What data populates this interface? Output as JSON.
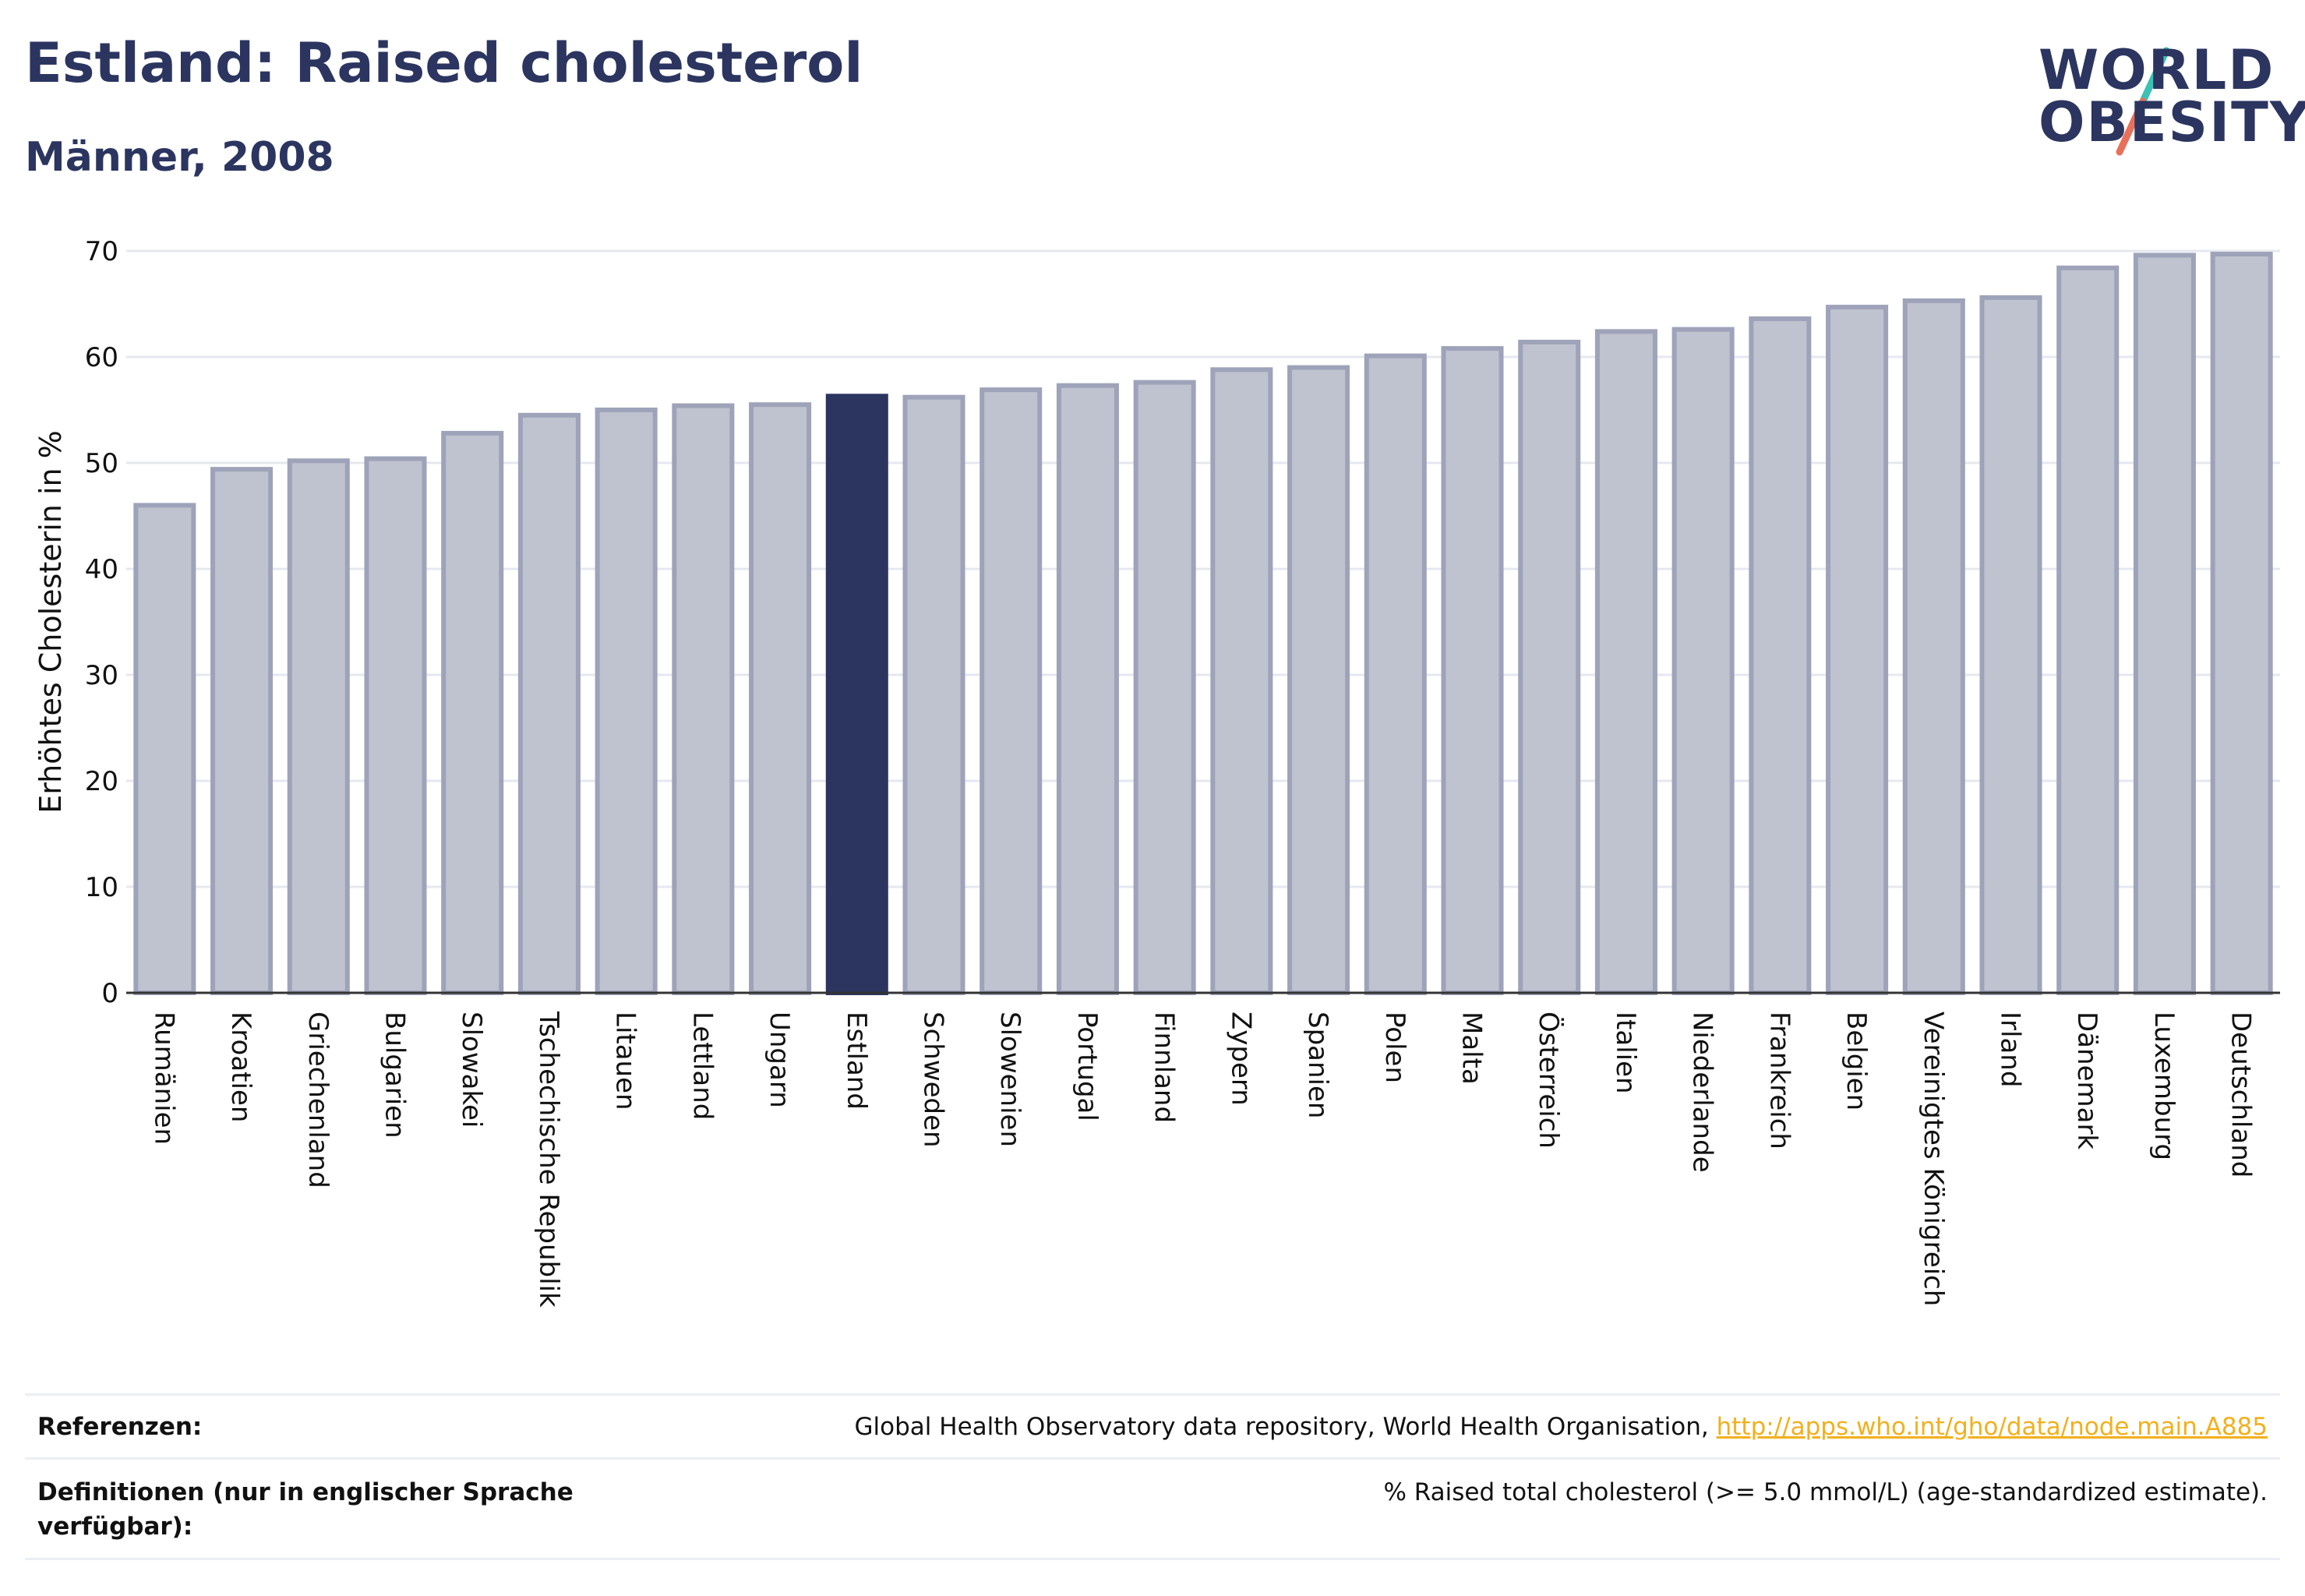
{
  "header": {
    "title": "Estland: Raised cholesterol",
    "subtitle": "Männer, 2008"
  },
  "logo": {
    "line1": "WORLD",
    "line2": "OBESITY",
    "colors": {
      "text": "#2b3560",
      "slash_top": "#3cc1b4",
      "slash_bottom": "#e8705a"
    }
  },
  "colors": {
    "bar_fill": "#bfc2cf",
    "bar_stroke": "#9ea3b9",
    "highlight": "#2b3560",
    "grid": "#e6e8ef",
    "axis": "#333333"
  },
  "chart_data": {
    "type": "bar",
    "title": "Estland: Raised cholesterol",
    "subtitle": "Männer, 2008",
    "xlabel": "",
    "ylabel": "Erhöhtes Cholesterin in %",
    "ylim": [
      0,
      70
    ],
    "yticks": [
      0,
      10,
      20,
      30,
      40,
      50,
      60,
      70
    ],
    "grid": true,
    "highlight": "Estland",
    "categories": [
      "Rumänien",
      "Kroatien",
      "Griechenland",
      "Bulgarien",
      "Slowakei",
      "Tschechische Republik",
      "Litauen",
      "Lettland",
      "Ungarn",
      "Estland",
      "Schweden",
      "Slowenien",
      "Portugal",
      "Finnland",
      "Zypern",
      "Spanien",
      "Polen",
      "Malta",
      "Österreich",
      "Italien",
      "Niederlande",
      "Frankreich",
      "Belgien",
      "Vereinigtes Königreich",
      "Irland",
      "Dänemark",
      "Luxemburg",
      "Deutschland"
    ],
    "values": [
      46.0,
      49.4,
      50.2,
      50.4,
      52.8,
      54.5,
      55.0,
      55.4,
      55.5,
      56.3,
      56.2,
      56.9,
      57.3,
      57.6,
      58.8,
      59.0,
      60.1,
      60.8,
      61.4,
      62.4,
      62.6,
      63.6,
      64.7,
      65.3,
      65.6,
      68.4,
      69.6,
      69.7
    ]
  },
  "footer": {
    "references_label": "Referenzen:",
    "references_text": "Global Health Observatory data repository, World Health Organisation, ",
    "references_link": "http://apps.who.int/gho/data/node.main.A885",
    "definitions_label": "Definitionen (nur in englischer Sprache verfügbar):",
    "definitions_text": "% Raised total cholesterol (>= 5.0 mmol/L) (age-standardized estimate)."
  }
}
